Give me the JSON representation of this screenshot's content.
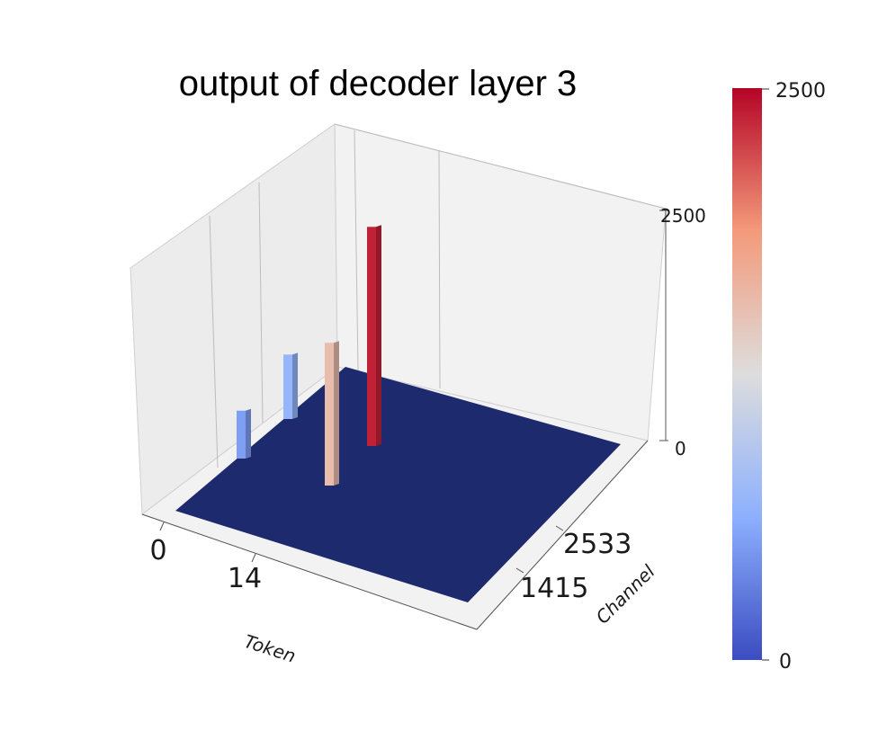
{
  "chart_data": {
    "type": "bar3d",
    "title": "output of decoder layer 3",
    "xlabel": "Token",
    "ylabel": "Channel",
    "x_ticks": [
      "0",
      "14"
    ],
    "y_ticks": [
      "2533",
      "1415"
    ],
    "z_ticks": [
      "0",
      "2500"
    ],
    "zlim": [
      0,
      2500
    ],
    "colormap": "coolwarm",
    "colorbar": {
      "ticks": [
        "0",
        "2500"
      ],
      "range": [
        0,
        2500
      ]
    },
    "bars": [
      {
        "token": 0,
        "channel": 2533,
        "value": 520
      },
      {
        "token": 0,
        "channel": 1415,
        "value": 1550
      },
      {
        "token": 14,
        "channel": 2533,
        "value": 700
      },
      {
        "token": 14,
        "channel": 1415,
        "value": 2380
      }
    ],
    "baseline_color": "#1e2a6e"
  }
}
